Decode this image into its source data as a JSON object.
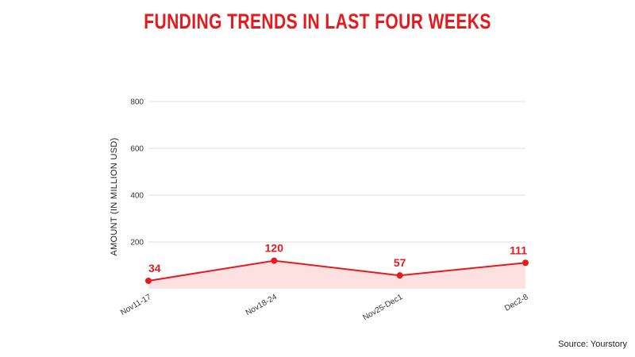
{
  "title": "FUNDING TRENDS IN LAST FOUR WEEKS",
  "source": "Source: Yourstory",
  "colors": {
    "accent": "#e8191c",
    "area": "#fde0e0",
    "grid": "#dddddd"
  },
  "chart_data": {
    "type": "line",
    "categories": [
      "Nov11-17",
      "Nov18-24",
      "Nov25-Dec1",
      "Dec2-8"
    ],
    "series": [
      {
        "values": [
          34,
          120,
          57,
          111
        ]
      }
    ],
    "data_labels": [
      "34",
      "120",
      "57",
      "111"
    ],
    "ylabel": "AMOUNT (IN MILLION USD)",
    "xlabel": "",
    "ylim": [
      0,
      800
    ],
    "yticks": [
      200,
      400,
      600,
      800
    ],
    "grid": true,
    "area_fill": true
  }
}
